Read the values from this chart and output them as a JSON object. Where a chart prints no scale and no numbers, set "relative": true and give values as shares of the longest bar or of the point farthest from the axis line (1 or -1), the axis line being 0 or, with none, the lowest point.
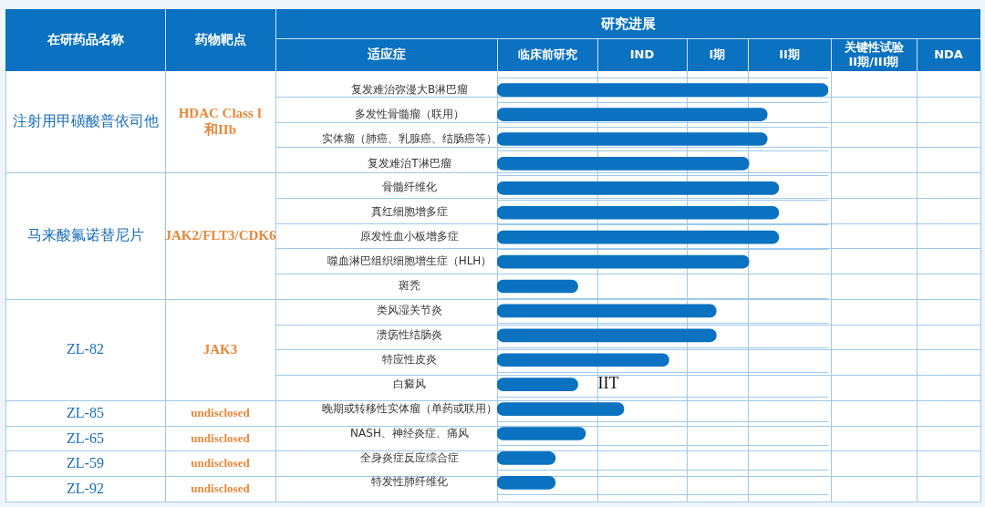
{
  "chart_data": {
    "type": "bar",
    "orientation": "horizontal",
    "relative": true,
    "title": "研究进展",
    "ylabel": "适应症",
    "categories": [
      "复发难治弥漫大B淋巴瘤",
      "多发性骨髓瘤（联用）",
      "实体瘤（肺癌、乳腺癌、结肠癌等）",
      "复发难治T淋巴瘤",
      "骨髓纤维化",
      "真红细胞增多症",
      "原发性血小板增多症",
      "噬血淋巴组织细胞增生症（HLH）",
      "斑秃",
      "类风湿关节炎",
      "溃疡性结肠炎",
      "特应性皮炎",
      "白癜风",
      "晚期或转移性实体瘤（单药或联用）",
      "NASH、神经炎症、痛风",
      "全身炎症反应综合症",
      "特发性肺纤维化"
    ],
    "values": [
      1,
      0.816,
      0.816,
      0.761,
      0.851,
      0.851,
      0.851,
      0.761,
      0.244,
      0.662,
      0.662,
      0.519,
      0.244,
      0.383,
      0.267,
      0.176,
      0.176
    ],
    "color": "#0a72c0",
    "grid": true,
    "annotations": [
      "在研药品名称",
      "药物靶点",
      "临床前研究",
      "IND",
      "I期",
      "II期",
      "关键性试验\nII期/III期",
      "NDA",
      "注射用甲磺酸普依司他",
      "HDAC Class I 和IIb",
      "马来酸氟诺替尼片",
      "JAK2/FLT3/CDK6",
      "ZL-82",
      "JAK3",
      "ZL-85",
      "undisclosed",
      "ZL-65",
      "undisclosed",
      "ZL-59",
      "undisclosed",
      "ZL-92",
      "undisclosed",
      {
        "text": "IIT",
        "x": 0.244,
        "y": "白癜风"
      }
    ]
  }
}
